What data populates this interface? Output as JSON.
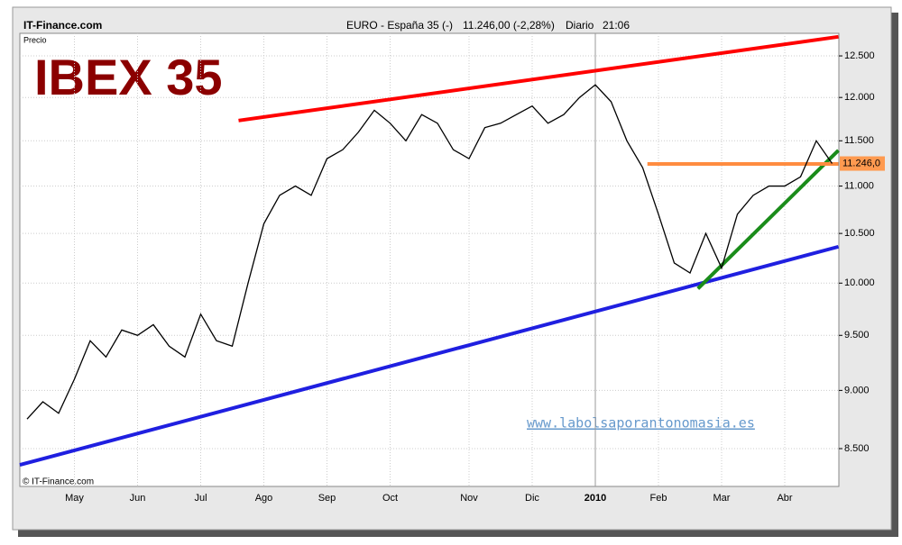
{
  "header": {
    "site": "IT-Finance.com",
    "instrument": "EURO - España 35 (-)",
    "quote": "11.246,00 (-2,28%)",
    "period": "Diario",
    "time": "21:06"
  },
  "chart_data": {
    "type": "line",
    "title": "IBEX 35",
    "y_label": "Precio",
    "credit": "© IT-Finance.com",
    "watermark": "www.labolsaporantonomasia.es",
    "categories": [
      null,
      null,
      null,
      "May",
      null,
      null,
      null,
      "Jun",
      null,
      null,
      null,
      "Jul",
      null,
      null,
      null,
      "Ago",
      null,
      null,
      null,
      "Sep",
      null,
      null,
      null,
      "Oct",
      null,
      null,
      null,
      null,
      "Nov",
      null,
      null,
      null,
      "Dic",
      null,
      null,
      null,
      "2010",
      null,
      null,
      null,
      "Feb",
      null,
      null,
      null,
      "Mar",
      null,
      null,
      null,
      "Abr",
      null,
      null,
      null
    ],
    "series": [
      {
        "name": "IBEX 35",
        "color": "#000000",
        "values": [
          8750,
          8900,
          8800,
          9100,
          9450,
          9300,
          9550,
          9500,
          9600,
          9400,
          9300,
          9700,
          9450,
          9400,
          10000,
          10600,
          10900,
          11000,
          10900,
          11300,
          11400,
          11600,
          11850,
          11700,
          11500,
          11800,
          11700,
          11400,
          11300,
          11650,
          11700,
          11800,
          11900,
          11700,
          11800,
          12000,
          12150,
          11950,
          11500,
          11200,
          10700,
          10200,
          10100,
          10500,
          10150,
          10700,
          10900,
          11000,
          11000,
          11100,
          11500,
          11246
        ]
      }
    ],
    "last_label": {
      "value": 11246,
      "label": "11.246,0"
    },
    "trendlines": [
      {
        "color": "#ff0000",
        "x": [
          13.4,
          51.4
        ],
        "values": [
          11731,
          12737
        ]
      },
      {
        "color": "#1f1fe0",
        "x": [
          -0.46,
          51.4
        ],
        "values": [
          8365,
          10364
        ]
      },
      {
        "color": "#1a8c1a",
        "x": [
          42.5,
          51.4
        ],
        "values": [
          9946,
          11392
        ]
      },
      {
        "color": "#ff8c40",
        "x": [
          39.3,
          51.4
        ],
        "values": [
          11241,
          11241
        ]
      }
    ],
    "ylim": [
      8190,
      12780
    ],
    "log_scale": true,
    "grid": true,
    "yticks": [
      {
        "value": 8500,
        "label": "8.500"
      },
      {
        "value": 9000,
        "label": "9.000"
      },
      {
        "value": 9500,
        "label": "9.500"
      },
      {
        "value": 10000,
        "label": "10.000"
      },
      {
        "value": 10500,
        "label": "10.500"
      },
      {
        "value": 11000,
        "label": "11.000"
      },
      {
        "value": 11500,
        "label": "11.500"
      },
      {
        "value": 12000,
        "label": "12.000"
      },
      {
        "value": 12500,
        "label": "12.500"
      }
    ]
  }
}
